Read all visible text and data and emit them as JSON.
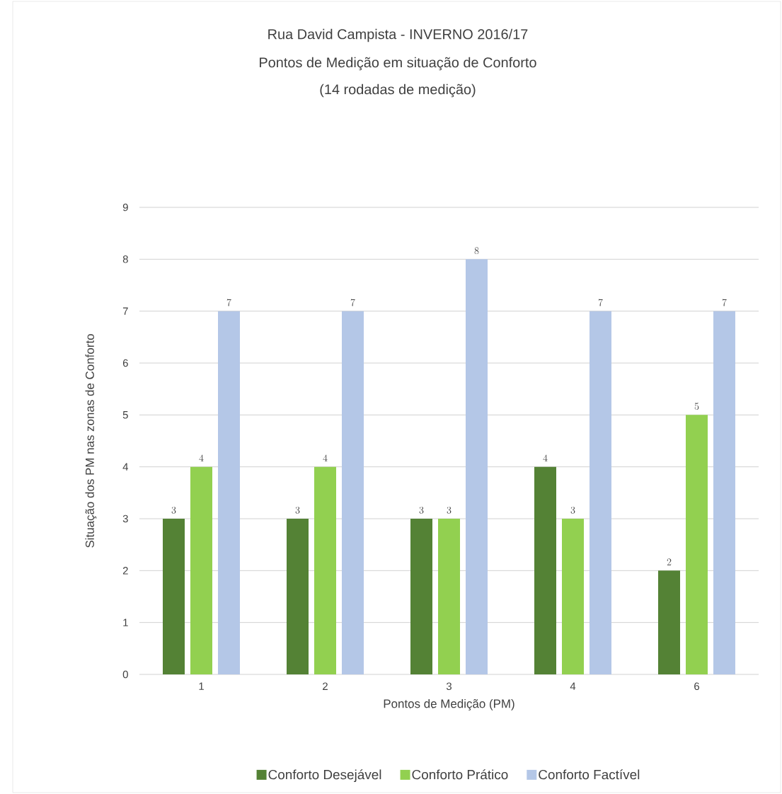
{
  "chart_data": {
    "type": "bar",
    "title": "Rua David Campista - INVERNO 2016/17",
    "subtitle": "Pontos de Medição em situação de Conforto",
    "annotations": [
      "(14 rodadas de medição)"
    ],
    "xlabel": "Pontos de Medição (PM)",
    "ylabel": "Situação dos PM nas zonas de Conforto",
    "categories": [
      "1",
      "2",
      "3",
      "4",
      "6"
    ],
    "series": [
      {
        "name": "Conforto Desejável",
        "color": "#548235",
        "values": [
          3,
          3,
          3,
          4,
          2
        ]
      },
      {
        "name": "Conforto Prático",
        "color": "#92d050",
        "values": [
          4,
          4,
          3,
          3,
          5
        ]
      },
      {
        "name": "Conforto Factível",
        "color": "#b4c7e7",
        "values": [
          7,
          7,
          8,
          7,
          7
        ]
      }
    ],
    "ylim": [
      0,
      9
    ],
    "yticks": [
      0,
      1,
      2,
      3,
      4,
      5,
      6,
      7,
      8,
      9
    ],
    "grid": "y",
    "legend": "bottom",
    "data_labels": true
  }
}
